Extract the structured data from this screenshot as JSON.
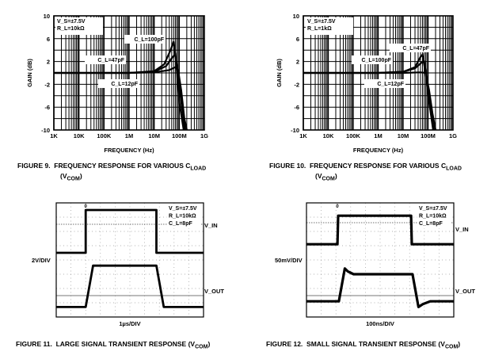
{
  "chart_data": [
    {
      "type": "line",
      "figure": "FIGURE 9.",
      "title": "FREQUENCY RESPONSE FOR VARIOUS C",
      "title_sub": "LOAD",
      "title_line2": "(V",
      "title_line2_sub": "COM",
      "title_line2_end": ")",
      "xlabel": "FREQUENCY (Hz)",
      "ylabel": "GAIN (dB)",
      "xscale": "log",
      "xlim": [
        1000,
        1000000000
      ],
      "ylim": [
        -10,
        10
      ],
      "xticks": [
        {
          "v": 1000,
          "label": "1K"
        },
        {
          "v": 10000,
          "label": "10K"
        },
        {
          "v": 100000,
          "label": "100K"
        },
        {
          "v": 1000000,
          "label": "1M"
        },
        {
          "v": 10000000,
          "label": "10M"
        },
        {
          "v": 100000000,
          "label": "100M"
        },
        {
          "v": 1000000000,
          "label": "1G"
        }
      ],
      "yticks": [
        {
          "v": 10,
          "label": "10"
        },
        {
          "v": 6,
          "label": "6"
        },
        {
          "v": 2,
          "label": "2"
        },
        {
          "v": -2,
          "label": "-2"
        },
        {
          "v": -6,
          "label": "-6"
        },
        {
          "v": -10,
          "label": "-10"
        }
      ],
      "conditions": [
        "V_S=±7.5V",
        "R_L=10kΩ"
      ],
      "series": [
        {
          "name": "C_L=12pF",
          "x": [
            1000,
            1000000,
            10000000,
            40000000,
            70000000,
            90000000,
            120000000,
            160000000,
            200000000
          ],
          "y": [
            0,
            0,
            0.1,
            0.5,
            1,
            0.5,
            -3,
            -8,
            -10
          ]
        },
        {
          "name": "C_L=47pF",
          "x": [
            1000,
            1000000,
            10000000,
            30000000,
            55000000,
            70000000,
            90000000,
            120000000,
            170000000
          ],
          "y": [
            0,
            0,
            0.2,
            1.2,
            2.8,
            3.2,
            0,
            -5,
            -10
          ]
        },
        {
          "name": "C_L=100pF",
          "x": [
            1000,
            1000000,
            10000000,
            25000000,
            45000000,
            60000000,
            75000000,
            100000000,
            150000000
          ],
          "y": [
            0,
            0,
            0.3,
            1.5,
            4,
            5.5,
            2,
            -5,
            -10
          ]
        }
      ],
      "annotations": [
        {
          "text": "C_L=100pF"
        },
        {
          "text": "C_L=47pF"
        },
        {
          "text": "C_L=12pF"
        }
      ]
    },
    {
      "type": "line",
      "figure": "FIGURE 10.",
      "title": "FREQUENCY RESPONSE FOR VARIOUS C",
      "title_sub": "LOAD",
      "title_line2": "(V",
      "title_line2_sub": "COM",
      "title_line2_end": ")",
      "xlabel": "FREQUENCY (Hz)",
      "ylabel": "GAIN (dB)",
      "xscale": "log",
      "xlim": [
        1000,
        1000000000
      ],
      "ylim": [
        -10,
        10
      ],
      "xticks": [
        {
          "v": 1000,
          "label": "1K"
        },
        {
          "v": 10000,
          "label": "10K"
        },
        {
          "v": 100000,
          "label": "100K"
        },
        {
          "v": 1000000,
          "label": "1M"
        },
        {
          "v": 10000000,
          "label": "10M"
        },
        {
          "v": 100000000,
          "label": "100M"
        },
        {
          "v": 1000000000,
          "label": "1G"
        }
      ],
      "yticks": [
        {
          "v": 10,
          "label": "10"
        },
        {
          "v": 6,
          "label": "6"
        },
        {
          "v": 2,
          "label": "2"
        },
        {
          "v": -2,
          "label": "-2"
        },
        {
          "v": -6,
          "label": "-6"
        },
        {
          "v": -10,
          "label": "-10"
        }
      ],
      "conditions": [
        "V_S=±7.5V",
        "R_L=1kΩ"
      ],
      "series": [
        {
          "name": "C_L=12pF",
          "x": [
            1000,
            1000000,
            10000000,
            50000000,
            80000000,
            110000000,
            150000000,
            200000000
          ],
          "y": [
            0,
            0,
            0,
            0.1,
            0,
            -3,
            -7,
            -10
          ]
        },
        {
          "name": "C_L=47pF",
          "x": [
            1000,
            1000000,
            10000000,
            30000000,
            50000000,
            60000000,
            80000000,
            110000000,
            160000000
          ],
          "y": [
            0,
            0,
            0.2,
            1,
            2.8,
            3.2,
            0,
            -5,
            -10
          ]
        },
        {
          "name": "C_L=100pF",
          "x": [
            1000,
            1000000,
            10000000,
            30000000,
            55000000,
            70000000,
            90000000,
            120000000,
            170000000
          ],
          "y": [
            0,
            0,
            0.2,
            0.8,
            1.8,
            2,
            -1,
            -6,
            -10
          ]
        }
      ],
      "annotations": [
        {
          "text": "C_L=47pF"
        },
        {
          "text": "C_L=100pF"
        },
        {
          "text": "C_L=12pF"
        }
      ]
    },
    {
      "type": "line",
      "figure": "FIGURE 11.",
      "title": "LARGE SIGNAL TRANSIENT RESPONSE (V",
      "title_sub": "COM",
      "title_end": ")",
      "xlabel": "1µs/DIV",
      "ylabel": "2V/DIV",
      "xlim": [
        0,
        10
      ],
      "ylim": [
        -4,
        4
      ],
      "units": "divisions",
      "conditions": [
        "V_S=±7.5V",
        "R_L=10kΩ",
        "C_L=8pF"
      ],
      "trace_labels": [
        "V_IN",
        "V_OUT"
      ],
      "ground_marker": "0",
      "series": [
        {
          "name": "V_IN",
          "x": [
            0,
            2.0,
            2.0,
            6.8,
            6.8,
            10
          ],
          "y": [
            0.5,
            0.5,
            3.5,
            3.5,
            0.5,
            0.5
          ]
        },
        {
          "name": "V_OUT",
          "x": [
            0,
            2.0,
            2.5,
            6.8,
            7.3,
            10
          ],
          "y": [
            -3.3,
            -3.3,
            -0.4,
            -0.4,
            -3.3,
            -3.3
          ]
        }
      ]
    },
    {
      "type": "line",
      "figure": "FIGURE 12.",
      "title": "SMALL SIGNAL TRANSIENT RESPONSE (V",
      "title_sub": "COM",
      "title_end": ")",
      "xlabel": "100ns/DIV",
      "ylabel": "50mV/DIV",
      "xlim": [
        0,
        10
      ],
      "ylim": [
        -4,
        4
      ],
      "units": "divisions",
      "conditions": [
        "V_S=±7.5V",
        "R_L=10kΩ",
        "C_L=8pF"
      ],
      "trace_labels": [
        "V_IN",
        "V_OUT"
      ],
      "ground_marker": "0",
      "series": [
        {
          "name": "V_IN",
          "x": [
            0,
            2.1,
            2.15,
            7.1,
            7.15,
            10
          ],
          "y": [
            1.1,
            1.1,
            3.1,
            3.1,
            1.1,
            1.1
          ]
        },
        {
          "name": "V_OUT",
          "x": [
            0,
            2.2,
            2.6,
            2.8,
            3.2,
            7.2,
            7.6,
            7.9,
            8.4,
            10
          ],
          "y": [
            -2.9,
            -2.9,
            -0.6,
            -0.8,
            -1.0,
            -1.0,
            -3.3,
            -3.1,
            -2.9,
            -2.9
          ]
        }
      ]
    }
  ]
}
